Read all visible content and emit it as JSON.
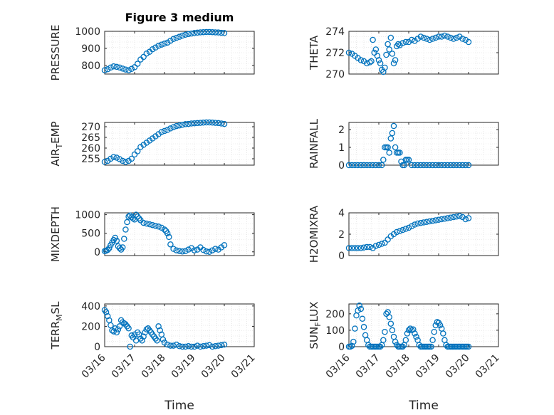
{
  "figure": {
    "title": "Figure 3 medium",
    "xlabel": "Time"
  },
  "style": {
    "marker_color": "#0072bd",
    "axis_color": "#262626",
    "grid_color": "#d9d9d9"
  },
  "chart_data": [
    {
      "type": "scatter",
      "ylabel": "PRESSURE",
      "ylim": [
        750,
        1000
      ],
      "yticks": [
        "800",
        "900",
        "1000"
      ],
      "ytick_values": [
        800,
        900,
        1000
      ],
      "xticklabels": [],
      "grid": true,
      "marker": "circle",
      "x": [
        0.0,
        0.1,
        0.2,
        0.3,
        0.4,
        0.5,
        0.6,
        0.7,
        0.8,
        0.9,
        1.0,
        1.1,
        1.2,
        1.3,
        1.4,
        1.5,
        1.6,
        1.7,
        1.8,
        1.9,
        2.0,
        2.1,
        2.2,
        2.3,
        2.4,
        2.5,
        2.6,
        2.7,
        2.8,
        2.9,
        3.0,
        3.1,
        3.2,
        3.3,
        3.4,
        3.5,
        3.6,
        3.7,
        3.8,
        3.9,
        4.0
      ],
      "y": [
        772,
        778,
        788,
        795,
        792,
        788,
        782,
        776,
        772,
        780,
        790,
        810,
        835,
        850,
        870,
        880,
        895,
        905,
        915,
        922,
        928,
        934,
        945,
        955,
        962,
        968,
        975,
        980,
        984,
        987,
        990,
        992,
        994,
        995,
        996,
        996,
        995,
        994,
        993,
        991,
        990
      ]
    },
    {
      "type": "scatter",
      "ylabel": "THETA",
      "ylim": [
        270,
        274
      ],
      "yticks": [
        "270",
        "272",
        "274"
      ],
      "ytick_values": [
        270,
        272,
        274
      ],
      "xticklabels": [],
      "grid": true,
      "marker": "circle",
      "x": [
        0.0,
        0.1,
        0.2,
        0.3,
        0.4,
        0.5,
        0.6,
        0.7,
        0.75,
        0.8,
        0.85,
        0.9,
        0.95,
        1.0,
        1.05,
        1.1,
        1.15,
        1.2,
        1.25,
        1.3,
        1.35,
        1.4,
        1.45,
        1.5,
        1.55,
        1.6,
        1.65,
        1.7,
        1.8,
        1.9,
        2.0,
        2.1,
        2.2,
        2.3,
        2.4,
        2.5,
        2.6,
        2.7,
        2.8,
        2.9,
        3.0,
        3.1,
        3.2,
        3.3,
        3.4,
        3.5,
        3.6,
        3.7,
        3.8,
        3.9,
        4.0
      ],
      "y": [
        272.0,
        271.9,
        271.7,
        271.5,
        271.3,
        271.2,
        271.0,
        271.1,
        271.2,
        273.2,
        272.0,
        272.3,
        271.7,
        271.3,
        271.0,
        270.4,
        270.2,
        270.6,
        271.8,
        272.8,
        272.3,
        273.4,
        271.9,
        271.0,
        271.3,
        272.6,
        272.8,
        272.7,
        272.9,
        273.0,
        273.0,
        273.2,
        273.1,
        273.3,
        273.5,
        273.4,
        273.3,
        273.2,
        273.3,
        273.4,
        273.5,
        273.5,
        273.6,
        273.5,
        273.4,
        273.3,
        273.4,
        273.5,
        273.3,
        273.2,
        273.0
      ]
    },
    {
      "type": "scatter",
      "ylabel": "AIR_TEMP",
      "ylim": [
        252,
        272
      ],
      "yticks": [
        "255",
        "260",
        "265",
        "270"
      ],
      "ytick_values": [
        255,
        260,
        265,
        270
      ],
      "xticklabels": [],
      "grid": true,
      "marker": "circle",
      "x": [
        0.0,
        0.1,
        0.2,
        0.3,
        0.4,
        0.5,
        0.6,
        0.7,
        0.8,
        0.9,
        1.0,
        1.1,
        1.2,
        1.3,
        1.4,
        1.5,
        1.6,
        1.7,
        1.8,
        1.9,
        2.0,
        2.1,
        2.2,
        2.3,
        2.4,
        2.5,
        2.6,
        2.7,
        2.8,
        2.9,
        3.0,
        3.1,
        3.2,
        3.3,
        3.4,
        3.5,
        3.6,
        3.7,
        3.8,
        3.9,
        4.0
      ],
      "y": [
        253.5,
        254.0,
        255.0,
        255.8,
        255.5,
        254.8,
        254.0,
        253.5,
        254.0,
        255.0,
        257.0,
        258.5,
        260.5,
        261.5,
        262.5,
        263.5,
        264.5,
        265.5,
        266.5,
        267.5,
        268.0,
        268.5,
        269.2,
        269.8,
        270.3,
        270.6,
        270.9,
        271.2,
        271.3,
        271.5,
        271.6,
        271.7,
        271.8,
        271.9,
        272.0,
        272.0,
        271.9,
        271.8,
        271.7,
        271.5,
        271.3
      ]
    },
    {
      "type": "scatter",
      "ylabel": "RAINFALL",
      "ylim": [
        0,
        2.4
      ],
      "yticks": [
        "0",
        "1",
        "2"
      ],
      "ytick_values": [
        0,
        1,
        2
      ],
      "xticklabels": [],
      "grid": true,
      "marker": "circle",
      "x": [
        0.0,
        0.1,
        0.2,
        0.3,
        0.4,
        0.5,
        0.6,
        0.7,
        0.8,
        0.9,
        1.0,
        1.1,
        1.15,
        1.2,
        1.25,
        1.3,
        1.35,
        1.4,
        1.45,
        1.5,
        1.55,
        1.6,
        1.65,
        1.7,
        1.75,
        1.8,
        1.85,
        1.9,
        1.95,
        2.0,
        2.1,
        2.2,
        2.3,
        2.4,
        2.5,
        2.6,
        2.7,
        2.8,
        2.9,
        3.0,
        3.1,
        3.2,
        3.3,
        3.4,
        3.5,
        3.6,
        3.7,
        3.8,
        3.9,
        4.0
      ],
      "y": [
        0,
        0,
        0,
        0,
        0,
        0,
        0,
        0,
        0,
        0,
        0,
        0,
        0.3,
        1.0,
        1.0,
        1.0,
        0.7,
        1.5,
        1.8,
        2.2,
        1.0,
        0.7,
        0.7,
        0.7,
        0.2,
        0,
        0,
        0.3,
        0.3,
        0.3,
        0,
        0,
        0,
        0,
        0,
        0,
        0,
        0,
        0,
        0,
        0,
        0,
        0,
        0,
        0,
        0,
        0,
        0,
        0,
        0
      ]
    },
    {
      "type": "scatter",
      "ylabel": "MIXDEPTH",
      "ylim": [
        -100,
        1050
      ],
      "yticks": [
        "0",
        "500",
        "1000"
      ],
      "ytick_values": [
        0,
        500,
        1000
      ],
      "xticklabels": [],
      "grid": true,
      "marker": "circle",
      "x": [
        0.0,
        0.05,
        0.1,
        0.15,
        0.2,
        0.25,
        0.3,
        0.35,
        0.4,
        0.45,
        0.5,
        0.55,
        0.6,
        0.65,
        0.7,
        0.75,
        0.8,
        0.85,
        0.9,
        0.95,
        1.0,
        1.05,
        1.1,
        1.15,
        1.2,
        1.3,
        1.4,
        1.5,
        1.6,
        1.7,
        1.8,
        1.9,
        2.0,
        2.05,
        2.1,
        2.15,
        2.2,
        2.3,
        2.4,
        2.5,
        2.6,
        2.7,
        2.8,
        2.9,
        3.0,
        3.1,
        3.2,
        3.3,
        3.4,
        3.5,
        3.6,
        3.7,
        3.8,
        3.9,
        4.0
      ],
      "y": [
        20,
        30,
        50,
        100,
        180,
        250,
        320,
        380,
        300,
        150,
        100,
        60,
        120,
        350,
        600,
        800,
        950,
        980,
        930,
        900,
        870,
        1000,
        950,
        900,
        850,
        780,
        760,
        740,
        720,
        700,
        680,
        650,
        600,
        560,
        500,
        400,
        200,
        80,
        40,
        20,
        10,
        20,
        60,
        100,
        40,
        60,
        120,
        50,
        10,
        0,
        40,
        80,
        60,
        120,
        180
      ]
    },
    {
      "type": "scatter",
      "ylabel": "H2OMIXRA",
      "ylim": [
        0,
        4
      ],
      "yticks": [
        "0",
        "2",
        "4"
      ],
      "ytick_values": [
        0,
        2,
        4
      ],
      "xticklabels": [],
      "grid": true,
      "marker": "circle",
      "x": [
        0.0,
        0.1,
        0.2,
        0.3,
        0.4,
        0.5,
        0.6,
        0.7,
        0.8,
        0.9,
        1.0,
        1.1,
        1.2,
        1.3,
        1.4,
        1.5,
        1.6,
        1.7,
        1.8,
        1.9,
        2.0,
        2.1,
        2.2,
        2.3,
        2.4,
        2.5,
        2.6,
        2.7,
        2.8,
        2.9,
        3.0,
        3.1,
        3.2,
        3.3,
        3.4,
        3.5,
        3.6,
        3.7,
        3.8,
        3.9,
        4.0
      ],
      "y": [
        0.7,
        0.7,
        0.7,
        0.7,
        0.7,
        0.75,
        0.8,
        0.8,
        0.7,
        0.9,
        1.0,
        1.1,
        1.2,
        1.5,
        1.8,
        2.0,
        2.2,
        2.3,
        2.4,
        2.5,
        2.6,
        2.75,
        2.9,
        3.0,
        3.05,
        3.1,
        3.15,
        3.2,
        3.25,
        3.3,
        3.35,
        3.4,
        3.45,
        3.5,
        3.55,
        3.6,
        3.65,
        3.7,
        3.6,
        3.4,
        3.5
      ]
    },
    {
      "type": "scatter",
      "ylabel": "TERR_MSL",
      "ylim": [
        0,
        420
      ],
      "yticks": [
        "0",
        "200",
        "400"
      ],
      "ytick_values": [
        0,
        200,
        400
      ],
      "xticklabels": [
        "03/16",
        "03/17",
        "03/18",
        "03/19",
        "03/20",
        "03/21"
      ],
      "grid": true,
      "marker": "circle",
      "x": [
        0.0,
        0.05,
        0.1,
        0.15,
        0.2,
        0.25,
        0.3,
        0.35,
        0.4,
        0.45,
        0.5,
        0.55,
        0.6,
        0.65,
        0.7,
        0.75,
        0.8,
        0.85,
        0.9,
        0.95,
        1.0,
        1.05,
        1.1,
        1.15,
        1.2,
        1.25,
        1.3,
        1.35,
        1.4,
        1.45,
        1.5,
        1.55,
        1.6,
        1.65,
        1.7,
        1.75,
        1.8,
        1.85,
        1.9,
        1.95,
        2.0,
        2.1,
        2.2,
        2.3,
        2.4,
        2.5,
        2.6,
        2.7,
        2.8,
        2.9,
        3.0,
        3.1,
        3.2,
        3.3,
        3.4,
        3.5,
        3.6,
        3.7,
        3.8,
        3.9,
        4.0
      ],
      "y": [
        360,
        340,
        300,
        260,
        210,
        160,
        150,
        180,
        140,
        170,
        200,
        260,
        240,
        230,
        220,
        200,
        180,
        0,
        110,
        90,
        120,
        60,
        140,
        120,
        80,
        60,
        100,
        140,
        170,
        180,
        160,
        140,
        120,
        100,
        80,
        60,
        200,
        160,
        120,
        70,
        40,
        20,
        10,
        10,
        20,
        5,
        0,
        0,
        5,
        0,
        0,
        10,
        0,
        5,
        10,
        15,
        0,
        5,
        10,
        15,
        20
      ]
    },
    {
      "type": "scatter",
      "ylabel": "SUN_FLUX",
      "ylim": [
        0,
        260
      ],
      "yticks": [
        "0",
        "100",
        "200"
      ],
      "ytick_values": [
        0,
        100,
        200
      ],
      "xticklabels": [
        "03/16",
        "03/17",
        "03/18",
        "03/19",
        "03/20",
        "03/21"
      ],
      "grid": true,
      "marker": "circle",
      "x": [
        0.0,
        0.05,
        0.1,
        0.15,
        0.2,
        0.25,
        0.3,
        0.35,
        0.4,
        0.45,
        0.5,
        0.55,
        0.6,
        0.65,
        0.7,
        0.75,
        0.8,
        0.85,
        0.9,
        0.95,
        1.0,
        1.05,
        1.1,
        1.15,
        1.2,
        1.25,
        1.3,
        1.35,
        1.4,
        1.45,
        1.5,
        1.55,
        1.6,
        1.65,
        1.7,
        1.75,
        1.8,
        1.85,
        1.9,
        1.95,
        2.0,
        2.05,
        2.1,
        2.15,
        2.2,
        2.25,
        2.3,
        2.35,
        2.4,
        2.45,
        2.5,
        2.55,
        2.6,
        2.65,
        2.7,
        2.75,
        2.8,
        2.85,
        2.9,
        2.95,
        3.0,
        3.05,
        3.1,
        3.15,
        3.2,
        3.25,
        3.3,
        3.35,
        3.4,
        3.45,
        3.5,
        3.55,
        3.6,
        3.65,
        3.7,
        3.75,
        3.8,
        3.85,
        3.9,
        3.95,
        4.0
      ],
      "y": [
        0,
        0,
        5,
        30,
        110,
        190,
        220,
        250,
        230,
        170,
        120,
        70,
        40,
        10,
        0,
        0,
        0,
        0,
        0,
        0,
        0,
        0,
        10,
        40,
        90,
        200,
        210,
        180,
        140,
        100,
        60,
        30,
        10,
        0,
        0,
        0,
        0,
        10,
        40,
        80,
        100,
        110,
        100,
        105,
        80,
        60,
        40,
        10,
        0,
        0,
        0,
        0,
        0,
        0,
        0,
        0,
        40,
        90,
        130,
        150,
        145,
        130,
        110,
        80,
        40,
        10,
        0,
        0,
        0,
        0,
        0,
        0,
        0,
        0,
        0,
        0,
        0,
        0,
        0,
        0,
        0
      ]
    }
  ]
}
